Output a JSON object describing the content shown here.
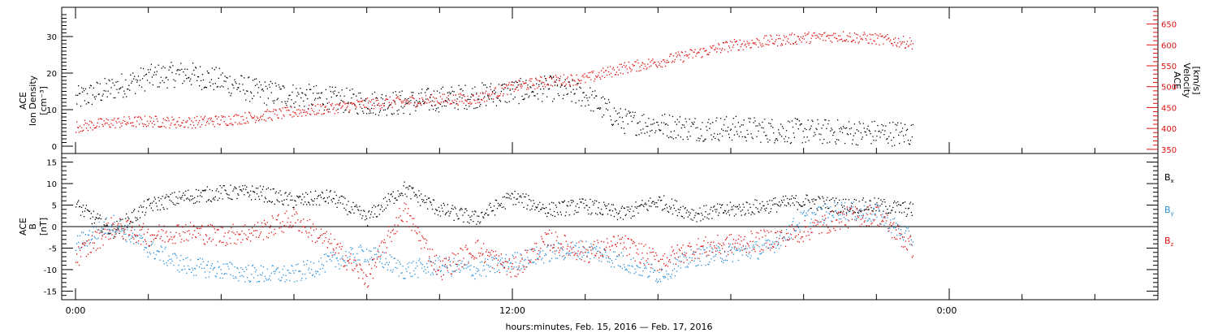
{
  "chart_data": [
    {
      "type": "scatter",
      "panel": "top",
      "ylabel_lines": [
        "ACE",
        "Ion Density",
        "[cm⁻³]"
      ],
      "y2label_lines": [
        "ACE",
        "Velocity",
        "[km/s]"
      ],
      "ylim": [
        -2,
        38
      ],
      "y2lim": [
        340,
        690
      ],
      "yticks": [
        "0",
        "10",
        "20",
        "30"
      ],
      "y2ticks": [
        "350",
        "400",
        "450",
        "500",
        "550",
        "600",
        "650"
      ],
      "series": [
        {
          "axis": "left",
          "color": "#000000",
          "x": [
            0,
            1,
            2,
            3,
            4,
            5,
            6,
            7,
            8,
            9,
            10,
            11,
            12,
            13,
            14,
            15,
            16,
            17,
            18,
            19,
            20,
            21,
            22,
            23
          ],
          "y": [
            13,
            16,
            19,
            20,
            18,
            15,
            14,
            13,
            12,
            12,
            13,
            14,
            15,
            16,
            14,
            7,
            6,
            5,
            5,
            4.5,
            4.2,
            4,
            3.8,
            3.5
          ]
        },
        {
          "axis": "right",
          "color": "#e01010",
          "x": [
            0,
            1,
            2,
            3,
            4,
            5,
            6,
            7,
            8,
            9,
            10,
            11,
            12,
            13,
            14,
            15,
            16,
            17,
            18,
            19,
            20,
            21,
            22,
            23
          ],
          "y": [
            405,
            415,
            418,
            415,
            420,
            430,
            440,
            450,
            460,
            465,
            470,
            472,
            500,
            515,
            520,
            545,
            560,
            580,
            600,
            610,
            618,
            622,
            615,
            605
          ]
        }
      ]
    },
    {
      "type": "scatter",
      "panel": "bottom",
      "ylabel_lines": [
        "ACE",
        "B",
        "[nT]"
      ],
      "ylim": [
        -17,
        17
      ],
      "yticks": [
        "-15",
        "-10",
        "-5",
        "0",
        "5",
        "10",
        "15"
      ],
      "legend_position": "right",
      "series": [
        {
          "name": "Bx",
          "color": "#000000",
          "x": [
            0,
            1,
            2,
            3,
            4,
            5,
            6,
            7,
            8,
            9,
            10,
            11,
            12,
            13,
            14,
            15,
            16,
            17,
            18,
            19,
            20,
            21,
            22,
            23
          ],
          "y": [
            5,
            -1,
            5,
            7,
            8,
            8,
            6,
            7,
            2,
            9,
            4,
            2,
            7,
            4,
            5,
            3,
            6,
            3,
            4,
            5,
            6,
            5,
            5,
            4
          ]
        },
        {
          "name": "By",
          "color": "#2a8fd6",
          "x": [
            0,
            1,
            2,
            3,
            4,
            5,
            6,
            7,
            8,
            9,
            10,
            11,
            12,
            13,
            14,
            15,
            16,
            17,
            18,
            19,
            20,
            21,
            22,
            23
          ],
          "y": [
            -4,
            1,
            -5,
            -9,
            -10,
            -11,
            -11,
            -8,
            -6,
            -10,
            -9,
            -10,
            -8,
            -6,
            -5,
            -8,
            -11,
            -7,
            -6,
            -5,
            2,
            4,
            3,
            -3
          ]
        },
        {
          "name": "Bz",
          "color": "#e01010",
          "x": [
            0,
            1,
            2,
            3,
            4,
            5,
            6,
            7,
            8,
            9,
            10,
            11,
            12,
            13,
            14,
            15,
            16,
            17,
            18,
            19,
            20,
            21,
            22,
            23
          ],
          "y": [
            -7,
            0,
            -2,
            -1,
            -2,
            -1,
            2,
            -4,
            -12,
            4,
            -10,
            -5,
            -10,
            -3,
            -6,
            -4,
            -8,
            -5,
            -4,
            -3,
            -1,
            2,
            3,
            -5
          ]
        }
      ]
    }
  ],
  "x_axis": {
    "tick_labels": [
      "0:00",
      "12:00",
      "0:00"
    ],
    "label": "hours:minutes, Feb. 15, 2016 — Feb. 17, 2016"
  },
  "legend": {
    "items": [
      {
        "text": "B",
        "sub": "x",
        "color": "#000000"
      },
      {
        "text": "B",
        "sub": "y",
        "color": "#2a8fd6"
      },
      {
        "text": "B",
        "sub": "z",
        "color": "#e01010"
      }
    ]
  }
}
